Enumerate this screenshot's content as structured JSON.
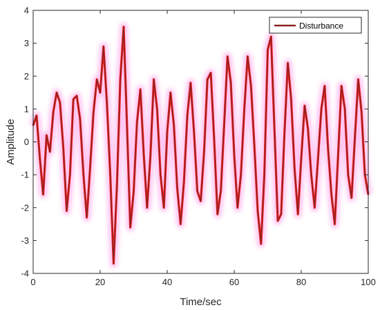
{
  "chart_data": {
    "type": "line",
    "title": "",
    "xlabel": "Time/sec",
    "ylabel": "Amplitude",
    "xlim": [
      0,
      100
    ],
    "ylim": [
      -4,
      4
    ],
    "xticks": [
      0,
      20,
      40,
      60,
      80,
      100
    ],
    "yticks": [
      4,
      3,
      2,
      1,
      0,
      -1,
      -2,
      -3,
      -4
    ],
    "grid": false,
    "legend_position": "top-right",
    "colors": {
      "series": "#8b2323",
      "highlight": "#ff1f1f",
      "halo": "#ff3cd2",
      "axis": "#262626"
    },
    "series": [
      {
        "name": "Disturbance",
        "x": [
          0,
          1,
          2,
          3,
          4,
          5,
          6,
          7,
          8,
          9,
          10,
          11,
          12,
          13,
          14,
          15,
          16,
          17,
          18,
          19,
          20,
          21,
          22,
          23,
          24,
          25,
          26,
          27,
          28,
          29,
          30,
          31,
          32,
          33,
          34,
          35,
          36,
          37,
          38,
          39,
          40,
          41,
          42,
          43,
          44,
          45,
          46,
          47,
          48,
          49,
          50,
          51,
          52,
          53,
          54,
          55,
          56,
          57,
          58,
          59,
          60,
          61,
          62,
          63,
          64,
          65,
          66,
          67,
          68,
          69,
          70,
          71,
          72,
          73,
          74,
          75,
          76,
          77,
          78,
          79,
          80,
          81,
          82,
          83,
          84,
          85,
          86,
          87,
          88,
          89,
          90,
          91,
          92,
          93,
          94,
          95,
          96,
          97,
          98,
          99,
          100
        ],
        "values": [
          0.5,
          0.8,
          -0.5,
          -1.6,
          0.2,
          -0.3,
          0.9,
          1.5,
          1.2,
          -0.2,
          -2.1,
          -1.0,
          1.3,
          1.4,
          0.7,
          -1.0,
          -2.3,
          -0.8,
          0.9,
          1.9,
          1.5,
          2.9,
          1.2,
          -1.0,
          -3.7,
          -1.3,
          1.9,
          3.5,
          0.5,
          -2.6,
          -1.5,
          0.6,
          1.6,
          -0.4,
          -2.0,
          -0.4,
          1.9,
          1.0,
          -1.0,
          -2.0,
          0.3,
          1.5,
          0.5,
          -1.4,
          -2.5,
          -1.2,
          0.8,
          1.8,
          0.3,
          -1.5,
          -1.8,
          -0.3,
          1.9,
          2.1,
          0.1,
          -2.2,
          -1.5,
          0.5,
          2.6,
          1.8,
          -0.4,
          -2.0,
          -1.0,
          1.0,
          2.6,
          1.7,
          -0.1,
          -2.1,
          -3.1,
          -1.0,
          2.8,
          3.2,
          0.4,
          -2.4,
          -2.2,
          0.3,
          2.4,
          1.3,
          -0.8,
          -2.2,
          -0.5,
          1.1,
          0.4,
          -1.0,
          -2.0,
          -0.5,
          1.0,
          1.7,
          -0.2,
          -1.6,
          -2.5,
          -0.4,
          1.7,
          1.0,
          -1.0,
          -1.7,
          0.1,
          1.9,
          0.9,
          -1.0,
          -1.6
        ]
      }
    ]
  }
}
